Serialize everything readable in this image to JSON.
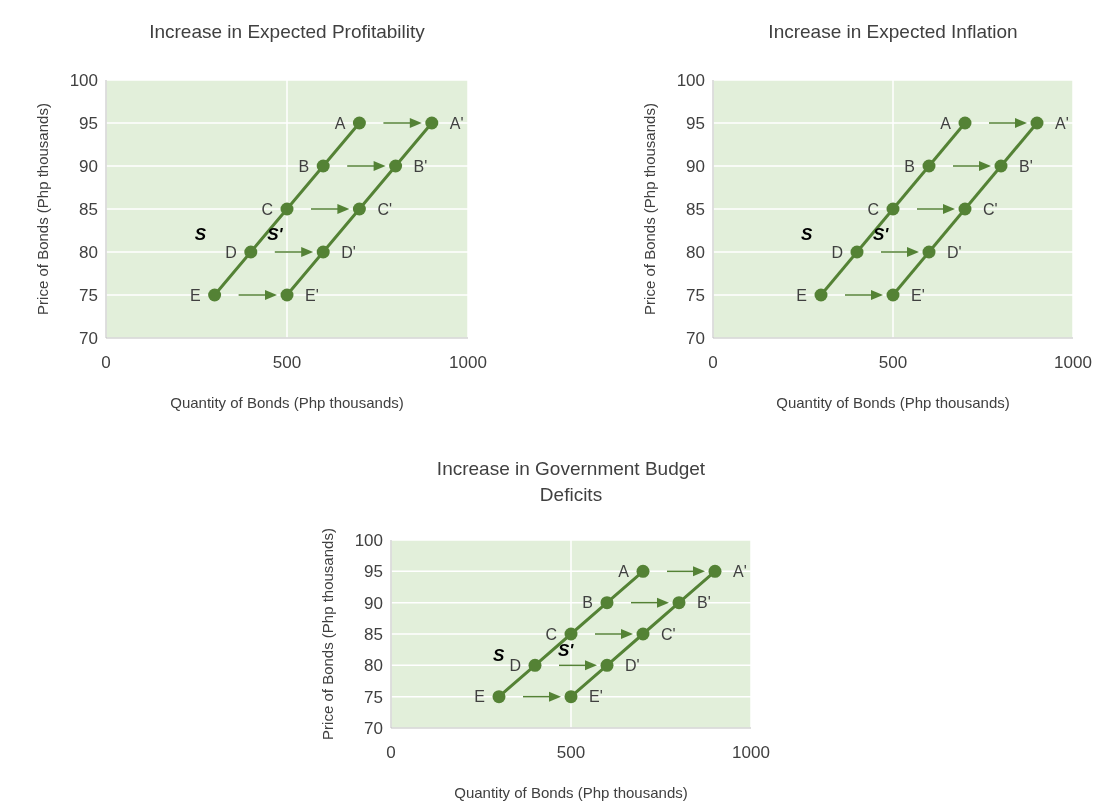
{
  "chart_data": [
    {
      "type": "line",
      "title": "Increase in Expected Profitability",
      "xlabel": "Quantity of Bonds (Php thousands)",
      "ylabel": "Price of Bonds (Php thousands)",
      "xlim": [
        0,
        1000
      ],
      "xticks": [
        0,
        500,
        1000
      ],
      "ylim": [
        70,
        100
      ],
      "yticks": [
        70,
        75,
        80,
        85,
        90,
        95,
        100
      ],
      "grid": true,
      "marker": "circle",
      "line_style": "solid",
      "series": [
        {
          "name": "S",
          "color": "#548235",
          "x": [
            300,
            400,
            500,
            600,
            700
          ],
          "values": [
            75,
            80,
            85,
            90,
            95
          ]
        },
        {
          "name": "S'",
          "color": "#548235",
          "x": [
            500,
            600,
            700,
            800,
            900
          ],
          "values": [
            75,
            80,
            85,
            90,
            95
          ]
        }
      ],
      "annotations": [
        {
          "text": "A",
          "x": 700,
          "y": 95
        },
        {
          "text": "B",
          "x": 600,
          "y": 90
        },
        {
          "text": "C",
          "x": 500,
          "y": 85
        },
        {
          "text": "D",
          "x": 400,
          "y": 80
        },
        {
          "text": "E",
          "x": 300,
          "y": 75
        },
        {
          "text": "A'",
          "x": 900,
          "y": 95
        },
        {
          "text": "B'",
          "x": 800,
          "y": 90
        },
        {
          "text": "C'",
          "x": 700,
          "y": 85
        },
        {
          "text": "D'",
          "x": 600,
          "y": 80
        },
        {
          "text": "E'",
          "x": 500,
          "y": 75
        }
      ]
    },
    {
      "type": "line",
      "title": "Increase in Expected Inflation",
      "xlabel": "Quantity of Bonds (Php thousands)",
      "ylabel": "Price of Bonds (Php thousands)",
      "xlim": [
        0,
        1000
      ],
      "xticks": [
        0,
        500,
        1000
      ],
      "ylim": [
        70,
        100
      ],
      "yticks": [
        70,
        75,
        80,
        85,
        90,
        95,
        100
      ],
      "grid": true,
      "marker": "circle",
      "line_style": "solid",
      "series": [
        {
          "name": "S",
          "color": "#548235",
          "x": [
            300,
            400,
            500,
            600,
            700
          ],
          "values": [
            75,
            80,
            85,
            90,
            95
          ]
        },
        {
          "name": "S'",
          "color": "#548235",
          "x": [
            500,
            600,
            700,
            800,
            900
          ],
          "values": [
            75,
            80,
            85,
            90,
            95
          ]
        }
      ],
      "annotations": [
        {
          "text": "A",
          "x": 700,
          "y": 95
        },
        {
          "text": "B",
          "x": 600,
          "y": 90
        },
        {
          "text": "C",
          "x": 500,
          "y": 85
        },
        {
          "text": "D",
          "x": 400,
          "y": 80
        },
        {
          "text": "E",
          "x": 300,
          "y": 75
        },
        {
          "text": "A'",
          "x": 900,
          "y": 95
        },
        {
          "text": "B'",
          "x": 800,
          "y": 90
        },
        {
          "text": "C'",
          "x": 700,
          "y": 85
        },
        {
          "text": "D'",
          "x": 600,
          "y": 80
        },
        {
          "text": "E'",
          "x": 500,
          "y": 75
        }
      ]
    },
    {
      "type": "line",
      "title": "Increase in Government Budget Deficits",
      "xlabel": "Quantity of Bonds (Php thousands)",
      "ylabel": "Price of Bonds (Php thousands)",
      "xlim": [
        0,
        1000
      ],
      "xticks": [
        0,
        500,
        1000
      ],
      "ylim": [
        70,
        100
      ],
      "yticks": [
        70,
        75,
        80,
        85,
        90,
        95,
        100
      ],
      "grid": true,
      "marker": "circle",
      "line_style": "solid",
      "series": [
        {
          "name": "S",
          "color": "#548235",
          "x": [
            300,
            400,
            500,
            600,
            700
          ],
          "values": [
            75,
            80,
            85,
            90,
            95
          ]
        },
        {
          "name": "S'",
          "color": "#548235",
          "x": [
            500,
            600,
            700,
            800,
            900
          ],
          "values": [
            75,
            80,
            85,
            90,
            95
          ]
        }
      ],
      "annotations": [
        {
          "text": "A",
          "x": 700,
          "y": 95
        },
        {
          "text": "B",
          "x": 600,
          "y": 90
        },
        {
          "text": "C",
          "x": 500,
          "y": 85
        },
        {
          "text": "D",
          "x": 400,
          "y": 80
        },
        {
          "text": "E",
          "x": 300,
          "y": 75
        },
        {
          "text": "A'",
          "x": 900,
          "y": 95
        },
        {
          "text": "B'",
          "x": 800,
          "y": 90
        },
        {
          "text": "C'",
          "x": 700,
          "y": 85
        },
        {
          "text": "D'",
          "x": 600,
          "y": 80
        },
        {
          "text": "E'",
          "x": 500,
          "y": 75
        }
      ]
    }
  ]
}
